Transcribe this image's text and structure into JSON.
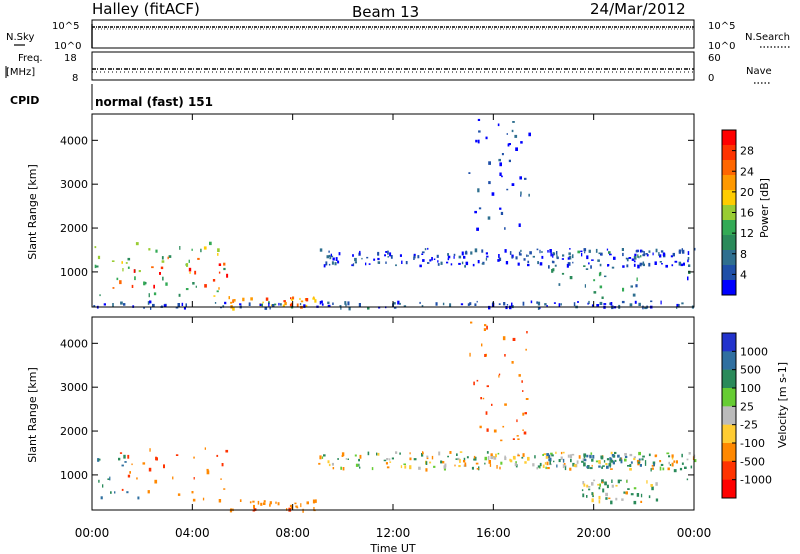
{
  "header": {
    "station": "Halley (fitACF)",
    "beam": "Beam 13",
    "date": "24/Mar/2012"
  },
  "top_panels": {
    "nsky_label": "N.Sky",
    "nsearch_label": "N.Search",
    "nsky_ticks": [
      "10^5",
      "10^0"
    ],
    "nsearch_ticks": [
      "10^5",
      "10^0"
    ],
    "freq_label_1": "Freq.",
    "freq_label_2": "[MHz]",
    "freq_ticks": [
      "18",
      "8"
    ],
    "nave_label": "Nave",
    "nave_ticks": [
      "60",
      "0"
    ],
    "cpid_label": "CPID",
    "cpid_text": "normal (fast) 151"
  },
  "chart_data": [
    {
      "type": "heatmap",
      "title": "",
      "panel": "power",
      "xlabel": "Time UT",
      "ylabel": "Slant Range [km]",
      "xlim": [
        0,
        24
      ],
      "ylim": [
        200,
        4600
      ],
      "x_ticks": [
        "00:00",
        "04:00",
        "08:00",
        "12:00",
        "16:00",
        "20:00",
        "00:00"
      ],
      "y_ticks": [
        "1000",
        "2000",
        "3000",
        "4000"
      ],
      "colorbar": {
        "label": "Power [dB]",
        "ticks": [
          "28",
          "24",
          "20",
          "16",
          "12",
          "8",
          "4"
        ],
        "colors": [
          "#ff0000",
          "#ff3300",
          "#ff6600",
          "#ff9900",
          "#ffcc00",
          "#99cc33",
          "#33aa55",
          "#2a8a5a",
          "#2f6f8f",
          "#1f4fa8",
          "#0000ff"
        ]
      },
      "echo_regions": [
        {
          "t": [
            0.1,
            5.4
          ],
          "range": [
            300,
            1700
          ],
          "power": 14
        },
        {
          "t": [
            0.8,
            5.4
          ],
          "range": [
            650,
            1350
          ],
          "power": 26
        },
        {
          "t": [
            5.4,
            9.0
          ],
          "range": [
            200,
            450
          ],
          "power": 22
        },
        {
          "t": [
            9.0,
            24.0
          ],
          "range": [
            1150,
            1550
          ],
          "power": 5
        },
        {
          "t": [
            15.0,
            17.5
          ],
          "range": [
            1800,
            4500
          ],
          "power": 4
        },
        {
          "t": [
            18.3,
            22.5
          ],
          "range": [
            400,
            1500
          ],
          "power": 10
        },
        {
          "t": [
            23.0,
            24.0
          ],
          "range": [
            850,
            1450
          ],
          "power": 7
        },
        {
          "t": [
            0.0,
            24.0
          ],
          "range": [
            200,
            350
          ],
          "power": 6
        }
      ]
    },
    {
      "type": "heatmap",
      "title": "",
      "panel": "velocity",
      "xlabel": "Time UT",
      "ylabel": "Slant Range [km]",
      "xlim": [
        0,
        24
      ],
      "ylim": [
        200,
        4600
      ],
      "x_ticks": [
        "00:00",
        "04:00",
        "08:00",
        "12:00",
        "16:00",
        "20:00",
        "00:00"
      ],
      "y_ticks": [
        "1000",
        "2000",
        "3000",
        "4000"
      ],
      "colorbar": {
        "label": "Velocity [m s-1]",
        "ticks": [
          "1000",
          "500",
          "100",
          "25",
          "-25",
          "-100",
          "-500",
          "-1000"
        ],
        "colors": [
          "#2233cc",
          "#2f6fa0",
          "#2a8a5a",
          "#66cc33",
          "#bbbbbb",
          "#ffcc33",
          "#ff8800",
          "#ff3300",
          "#ff0000"
        ]
      },
      "echo_regions": [
        {
          "t": [
            0.1,
            2.0
          ],
          "range": [
            400,
            1700
          ],
          "velocity": 300
        },
        {
          "t": [
            1.0,
            5.4
          ],
          "range": [
            450,
            1650
          ],
          "velocity": -300
        },
        {
          "t": [
            5.4,
            9.0
          ],
          "range": [
            200,
            450
          ],
          "velocity": -200
        },
        {
          "t": [
            9.0,
            24.0
          ],
          "range": [
            1150,
            1550
          ],
          "velocity": 0
        },
        {
          "t": [
            15.0,
            17.5
          ],
          "range": [
            1800,
            4500
          ],
          "velocity": -300
        },
        {
          "t": [
            18.0,
            22.5
          ],
          "range": [
            1200,
            1500
          ],
          "velocity": 300
        },
        {
          "t": [
            19.5,
            22.5
          ],
          "range": [
            400,
            900
          ],
          "velocity": 60
        },
        {
          "t": [
            23.0,
            24.0
          ],
          "range": [
            850,
            1450
          ],
          "velocity": 200
        }
      ]
    }
  ]
}
